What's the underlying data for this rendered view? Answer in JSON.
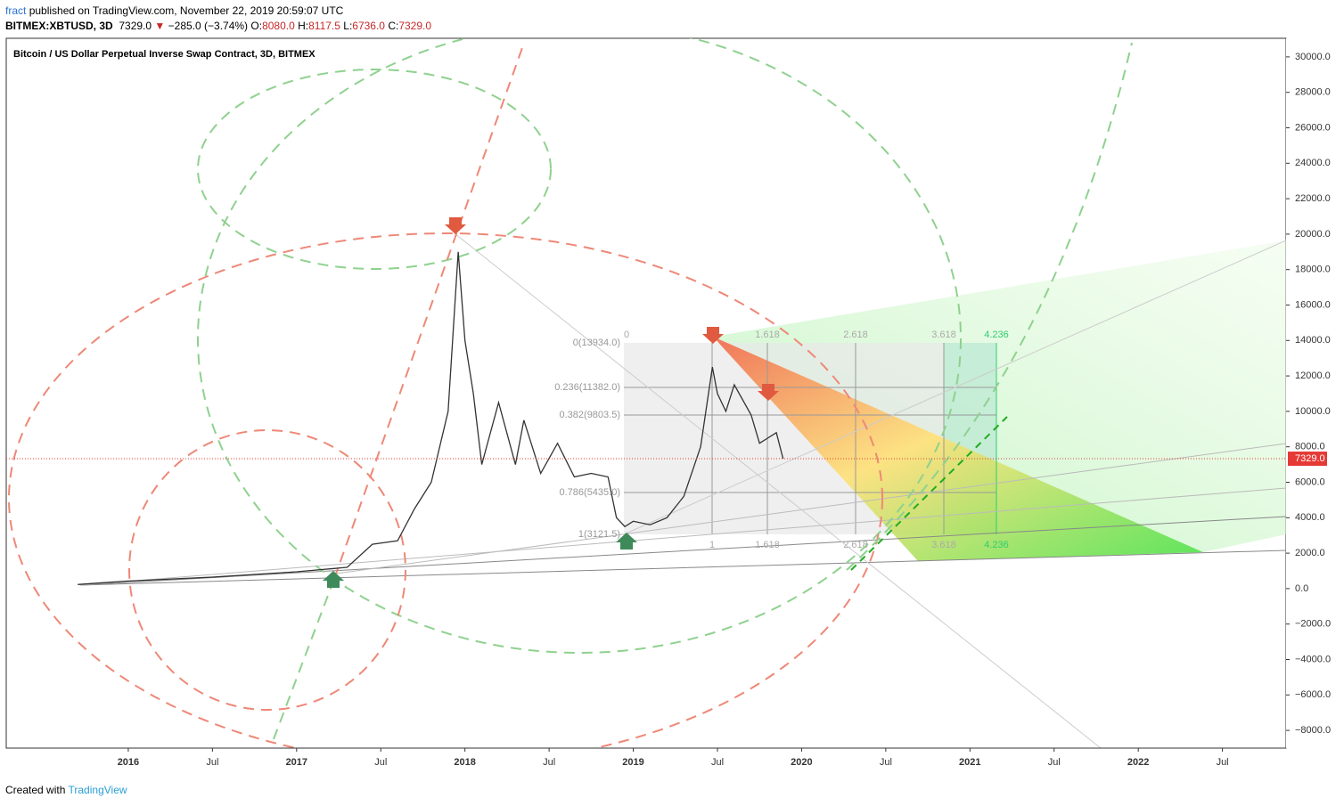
{
  "header": {
    "publisher": "fract",
    "published": "published on TradingView.com, November 22, 2019 20:59:07 UTC",
    "symbol": "BITMEX:XBTUSD, 3D",
    "last": "7329.0",
    "change": "−285.0 (−3.74%)",
    "ohlc": [
      {
        "label": "O:",
        "value": "8080.0"
      },
      {
        "label": "H:",
        "value": "8117.5"
      },
      {
        "label": "L:",
        "value": "6736.0"
      },
      {
        "label": "C:",
        "value": "7329.0"
      }
    ]
  },
  "footer": {
    "created": "Created with",
    "brand": "TradingView"
  },
  "chart_data": {
    "type": "line",
    "title": "Bitcoin / US Dollar Perpetual Inverse Swap Contract, 3D, BITMEX",
    "x": [
      2015.7,
      2016.0,
      2016.5,
      2017.0,
      2017.3,
      2017.45,
      2017.6,
      2017.7,
      2017.8,
      2017.9,
      2017.96,
      2018.0,
      2018.05,
      2018.1,
      2018.2,
      2018.3,
      2018.35,
      2018.45,
      2018.55,
      2018.65,
      2018.75,
      2018.85,
      2018.9,
      2018.95,
      2019.0,
      2019.1,
      2019.2,
      2019.3,
      2019.4,
      2019.47,
      2019.5,
      2019.55,
      2019.6,
      2019.7,
      2019.75,
      2019.8,
      2019.85,
      2019.89
    ],
    "series": [
      {
        "name": "XBTUSD",
        "color": "#333333",
        "values": [
          230,
          430,
          650,
          950,
          1200,
          2500,
          2700,
          4500,
          6000,
          10000,
          19000,
          14000,
          11000,
          7000,
          10500,
          7000,
          9500,
          6500,
          8200,
          6300,
          6500,
          6300,
          4000,
          3500,
          3800,
          3600,
          4000,
          5200,
          8000,
          12500,
          11000,
          10000,
          11500,
          9800,
          8200,
          8500,
          8800,
          7329
        ]
      }
    ],
    "xlim": [
      2015.275,
      2022.878
    ],
    "ylim": [
      -9000,
      31050
    ],
    "xticks": [
      2016,
      {
        "value": 2016.5,
        "label": "Jul"
      },
      2017,
      {
        "value": 2017.5,
        "label": "Jul"
      },
      2018,
      {
        "value": 2018.5,
        "label": "Jul"
      },
      2019,
      {
        "value": 2019.5,
        "label": "Jul"
      },
      2020,
      {
        "value": 2020.5,
        "label": "Jul"
      },
      2021,
      {
        "value": 2021.5,
        "label": "Jul"
      },
      2022,
      {
        "value": 2022.5,
        "label": "Jul"
      }
    ],
    "yticks": [
      {
        "value": -8000,
        "label": "−8000.0"
      },
      {
        "value": -6000,
        "label": "−6000.0"
      },
      {
        "value": -4000,
        "label": "−4000.0"
      },
      {
        "value": -2000,
        "label": "−2000.0"
      },
      {
        "value": 0,
        "label": "0.0"
      },
      {
        "value": 2000,
        "label": "2000.0"
      },
      {
        "value": 4000,
        "label": "4000.0"
      },
      {
        "value": 6000,
        "label": "6000.0"
      },
      {
        "value": 8000,
        "label": "8000.0"
      },
      {
        "value": 10000,
        "label": "10000.0"
      },
      {
        "value": 12000,
        "label": "12000.0"
      },
      {
        "value": 14000,
        "label": "14000.0"
      },
      {
        "value": 16000,
        "label": "16000.0"
      },
      {
        "value": 18000,
        "label": "18000.0"
      },
      {
        "value": 20000,
        "label": "20000.0"
      },
      {
        "value": 22000,
        "label": "22000.0"
      },
      {
        "value": 24000,
        "label": "24000.0"
      },
      {
        "value": 26000,
        "label": "26000.0"
      },
      {
        "value": 28000,
        "label": "28000.0"
      },
      {
        "value": 30000,
        "label": "30000.0"
      }
    ],
    "last_price": {
      "value": 7329,
      "label": "7329.0"
    },
    "annotations": {
      "fib_levels": [
        "0(13934.0)",
        "0.236(11382.0)",
        "0.382(9803.5)",
        "0.786(5435.0)",
        "1(3121.5)"
      ],
      "time_top": [
        "0",
        "1.618",
        "2.618",
        "3.618",
        "4.236"
      ],
      "time_bottom": [
        "1",
        "1.618",
        "2.618",
        "3.618",
        "4.236"
      ]
    }
  }
}
